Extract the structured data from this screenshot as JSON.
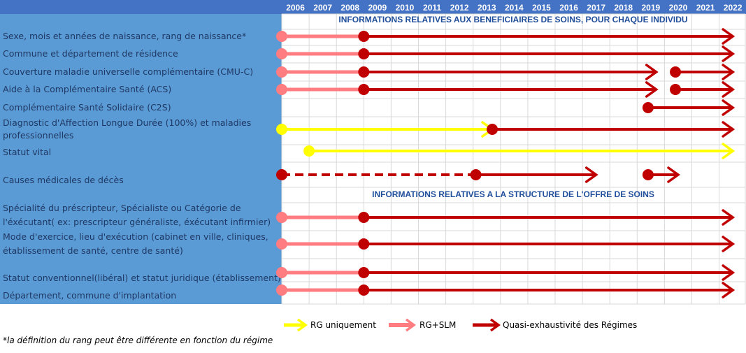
{
  "chart_data": {
    "type": "timeline",
    "years": [
      "2006",
      "2007",
      "2008",
      "2009",
      "2010",
      "2011",
      "2012",
      "2013",
      "2014",
      "2015",
      "2016",
      "2017",
      "2018",
      "2019",
      "2020",
      "2021",
      "2022"
    ],
    "sections": [
      {
        "title": "INFORMATIONS RELATIVES AUX BENEFICIAIRES DE SOINS, POUR CHAQUE INDIVIDU",
        "row": 0
      },
      {
        "title": "INFORMATIONS RELATIVES A LA STRUCTURE DE L'OFFRE DE SOINS",
        "row": 9
      }
    ],
    "rows": [
      {
        "label": [
          "Sexe, mois et années de naissance, rang de naissance*"
        ],
        "segments": [
          {
            "type": "rgslm",
            "from": 2006,
            "to": 2009
          },
          {
            "type": "quasi",
            "from": 2009,
            "to": 2022.5,
            "arrow": true
          }
        ]
      },
      {
        "label": [
          "Commune et département de résidence"
        ],
        "segments": [
          {
            "type": "rgslm",
            "from": 2006,
            "to": 2009
          },
          {
            "type": "quasi",
            "from": 2009,
            "to": 2022.5,
            "arrow": true
          }
        ]
      },
      {
        "label": [
          "Couverture maladie universelle complémentaire (CMU-C)"
        ],
        "segments": [
          {
            "type": "rgslm",
            "from": 2006,
            "to": 2009
          },
          {
            "type": "quasi",
            "from": 2009,
            "to": 2019.7,
            "arrow": true
          },
          {
            "type": "quasi",
            "from": 2020.4,
            "to": 2022.5,
            "arrow": true
          }
        ]
      },
      {
        "label": [
          "Aide à la Complémentaire Santé (ACS)"
        ],
        "segments": [
          {
            "type": "rgslm",
            "from": 2006,
            "to": 2009
          },
          {
            "type": "quasi",
            "from": 2009,
            "to": 2019.7,
            "arrow": true
          },
          {
            "type": "quasi",
            "from": 2020.4,
            "to": 2022.5,
            "arrow": true
          }
        ]
      },
      {
        "label": [
          "Complémentaire Santé Solidaire (C2S)"
        ],
        "segments": [
          {
            "type": "quasi",
            "from": 2019.4,
            "to": 2022.5,
            "arrow": true
          }
        ]
      },
      {
        "label": [
          "Diagnostic d'Affection Longue Durée (100%) et maladies",
          "professionnelles"
        ],
        "segments": [
          {
            "type": "rg",
            "from": 2006,
            "to": 2013.7,
            "arrow": true
          },
          {
            "type": "quasi",
            "from": 2013.7,
            "to": 2022.5,
            "arrow": true
          }
        ]
      },
      {
        "label": [
          "Statut vital"
        ],
        "segments": [
          {
            "type": "rg",
            "from": 2007,
            "to": 2022.5,
            "arrow": true
          }
        ]
      },
      {
        "label": [
          "Causes médicales de décès"
        ],
        "segments": [
          {
            "type": "quasi",
            "from": 2006,
            "to": 2013.1,
            "dashed": true
          },
          {
            "type": "quasi",
            "from": 2013.1,
            "to": 2017.5,
            "arrow": true
          },
          {
            "type": "quasi",
            "from": 2019.4,
            "to": 2020.5,
            "arrow": true
          }
        ]
      },
      {
        "label": [
          "Spécialité du préscripteur, Spécialiste ou Catégorie de",
          "l'éxécutant( ex: prescripteur généraliste, éxécutant infirmier)"
        ],
        "segments": [
          {
            "type": "rgslm",
            "from": 2006,
            "to": 2009
          },
          {
            "type": "quasi",
            "from": 2009,
            "to": 2022.5,
            "arrow": true
          }
        ]
      },
      {
        "label": [
          "Mode d'exercice, lieu d'exécution (cabinet en ville, cliniques,",
          "établissement de santé, centre de santé)"
        ],
        "segments": [
          {
            "type": "rgslm",
            "from": 2006,
            "to": 2009
          },
          {
            "type": "quasi",
            "from": 2009,
            "to": 2022.5,
            "arrow": true
          }
        ]
      },
      {
        "label": [
          "Statut conventionnel(libéral) et statut juridique (établissement)"
        ],
        "segments": [
          {
            "type": "rgslm",
            "from": 2006,
            "to": 2009
          },
          {
            "type": "quasi",
            "from": 2009,
            "to": 2022.5,
            "arrow": true
          }
        ]
      },
      {
        "label": [
          "Département, commune d'implantation"
        ],
        "segments": [
          {
            "type": "rgslm",
            "from": 2006,
            "to": 2009
          },
          {
            "type": "quasi",
            "from": 2009,
            "to": 2022.5,
            "arrow": true
          }
        ]
      }
    ],
    "legend": [
      {
        "key": "rg",
        "label": "RG uniquement"
      },
      {
        "key": "rgslm",
        "label": "RG+SLM"
      },
      {
        "key": "quasi",
        "label": "Quasi-exhaustivité des Régimes"
      }
    ],
    "colors": {
      "rg": "#ffff00",
      "rgslm": "#ff7c80",
      "quasi": "#c00000",
      "header": "#4472c4",
      "sidebar": "#5b9bd5",
      "grid": "#d9d9d9"
    }
  },
  "footnote": "*la définition du rang peut être différente en fonction du régime"
}
